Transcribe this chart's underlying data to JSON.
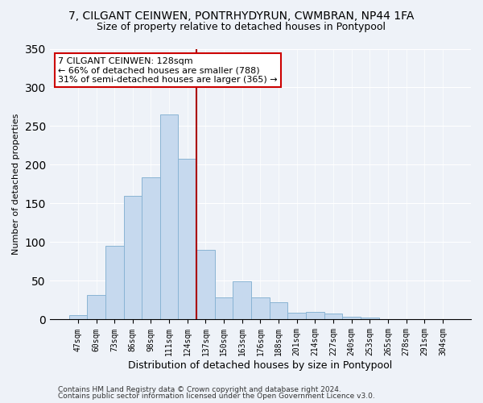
{
  "title": "7, CILGANT CEINWEN, PONTRHYDYRUN, CWMBRAN, NP44 1FA",
  "subtitle": "Size of property relative to detached houses in Pontypool",
  "xlabel": "Distribution of detached houses by size in Pontypool",
  "ylabel": "Number of detached properties",
  "bar_labels": [
    "47sqm",
    "60sqm",
    "73sqm",
    "86sqm",
    "98sqm",
    "111sqm",
    "124sqm",
    "137sqm",
    "150sqm",
    "163sqm",
    "176sqm",
    "188sqm",
    "201sqm",
    "214sqm",
    "227sqm",
    "240sqm",
    "253sqm",
    "265sqm",
    "278sqm",
    "291sqm",
    "304sqm"
  ],
  "bar_values": [
    6,
    32,
    95,
    160,
    184,
    265,
    208,
    90,
    29,
    49,
    29,
    22,
    9,
    10,
    8,
    4,
    3,
    1,
    0,
    0,
    1
  ],
  "bar_color": "#c6d9ee",
  "bar_edge_color": "#8ab4d4",
  "vline_color": "#aa0000",
  "annotation_title": "7 CILGANT CEINWEN: 128sqm",
  "annotation_line1": "← 66% of detached houses are smaller (788)",
  "annotation_line2": "31% of semi-detached houses are larger (365) →",
  "annotation_box_color": "#ffffff",
  "annotation_box_edge": "#cc0000",
  "ylim": [
    0,
    350
  ],
  "yticks": [
    0,
    50,
    100,
    150,
    200,
    250,
    300,
    350
  ],
  "footer1": "Contains HM Land Registry data © Crown copyright and database right 2024.",
  "footer2": "Contains public sector information licensed under the Open Government Licence v3.0.",
  "background_color": "#eef2f8",
  "grid_color": "#ffffff",
  "title_fontsize": 10,
  "subtitle_fontsize": 9,
  "ylabel_fontsize": 8,
  "xlabel_fontsize": 9,
  "tick_fontsize": 7,
  "annot_fontsize": 8,
  "footer_fontsize": 6.5
}
